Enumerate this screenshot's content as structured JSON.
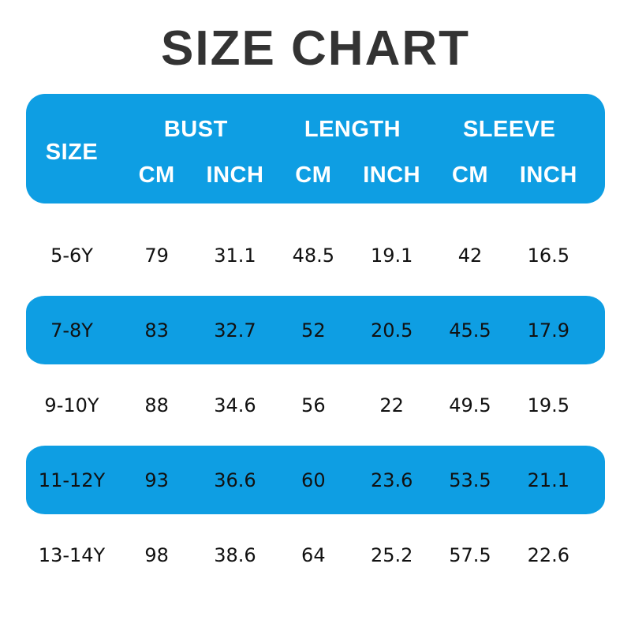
{
  "page": {
    "title": "SIZE CHART"
  },
  "colors": {
    "accent_blue": "#0E9EE3",
    "title_color": "#333333",
    "data_text": "#111111",
    "header_text": "#ffffff"
  },
  "chart_data": {
    "type": "table",
    "title": "SIZE CHART",
    "size_column_label": "SIZE",
    "column_groups": [
      "BUST",
      "LENGTH",
      "SLEEVE"
    ],
    "unit_columns": [
      "CM",
      "INCH",
      "CM",
      "INCH",
      "CM",
      "INCH"
    ],
    "rows": [
      {
        "size": "5-6Y",
        "values": [
          "79",
          "31.1",
          "48.5",
          "19.1",
          "42",
          "16.5"
        ],
        "highlighted": false
      },
      {
        "size": "7-8Y",
        "values": [
          "83",
          "32.7",
          "52",
          "20.5",
          "45.5",
          "17.9"
        ],
        "highlighted": true
      },
      {
        "size": "9-10Y",
        "values": [
          "88",
          "34.6",
          "56",
          "22",
          "49.5",
          "19.5"
        ],
        "highlighted": false
      },
      {
        "size": "11-12Y",
        "values": [
          "93",
          "36.6",
          "60",
          "23.6",
          "53.5",
          "21.1"
        ],
        "highlighted": true
      },
      {
        "size": "13-14Y",
        "values": [
          "98",
          "38.6",
          "64",
          "25.2",
          "57.5",
          "22.6"
        ],
        "highlighted": false
      }
    ]
  }
}
